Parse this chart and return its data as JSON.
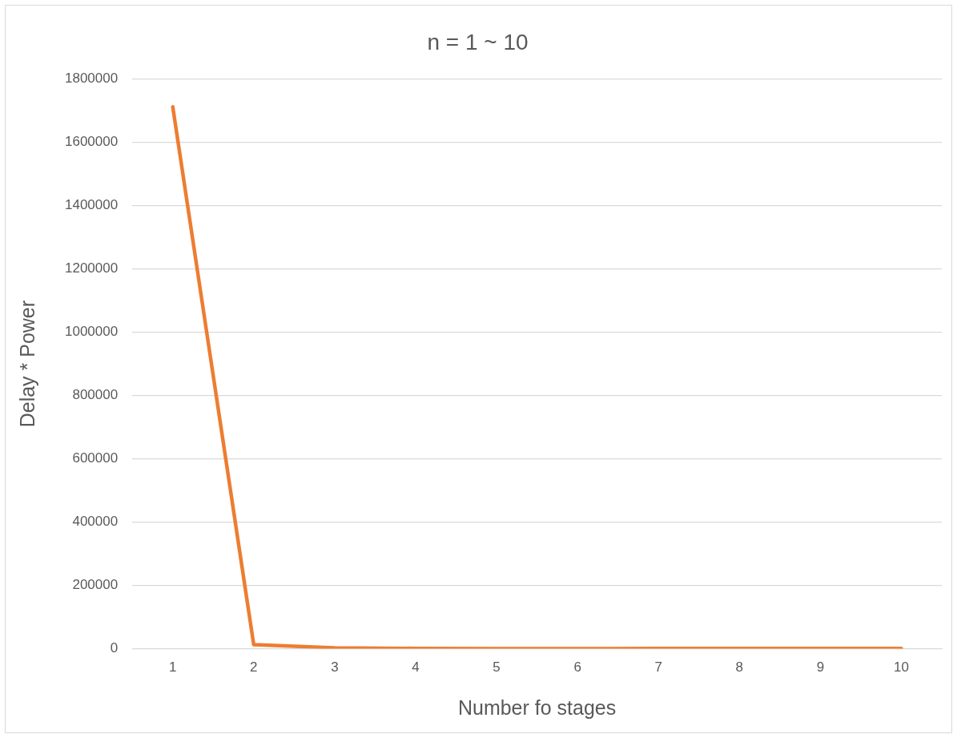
{
  "chart_data": {
    "type": "line",
    "title": "n = 1 ~ 10",
    "xlabel": "Number fo stages",
    "ylabel": "Delay * Power",
    "categories": [
      "1",
      "2",
      "3",
      "4",
      "5",
      "6",
      "7",
      "8",
      "9",
      "10"
    ],
    "series": [
      {
        "color": "#ed7d31",
        "values": [
          1712000,
          13000,
          3000,
          1000,
          0,
          0,
          1000,
          1000,
          1000,
          1000
        ]
      }
    ],
    "ylim": [
      0,
      1800000
    ],
    "yticks": [
      0,
      200000,
      400000,
      600000,
      800000,
      1000000,
      1200000,
      1400000,
      1600000,
      1800000
    ],
    "grid": "y",
    "legend": false,
    "marker": "none",
    "line_style": "solid"
  }
}
